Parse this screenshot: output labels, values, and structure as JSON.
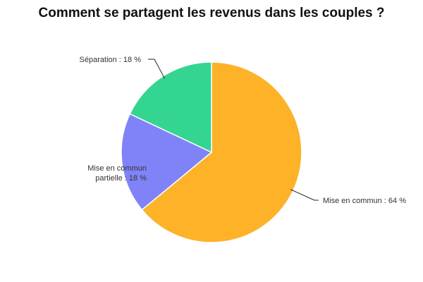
{
  "chart_data": {
    "type": "pie",
    "title": "Comment se partagent les revenus dans les couples ?",
    "slices": [
      {
        "label": "Mise en commun",
        "value": 64,
        "text": "Mise en commun : 64 %",
        "color": "#FDB228"
      },
      {
        "label": "Mise en commun partielle",
        "value": 18,
        "text": "Mise en commun partielle : 18 %",
        "color": "#8083F7"
      },
      {
        "label": "Séparation",
        "value": 18,
        "text": "Séparation : 18 %",
        "color": "#34D591"
      }
    ],
    "start_angle_deg": 0,
    "direction": "clockwise",
    "legend": "none"
  }
}
